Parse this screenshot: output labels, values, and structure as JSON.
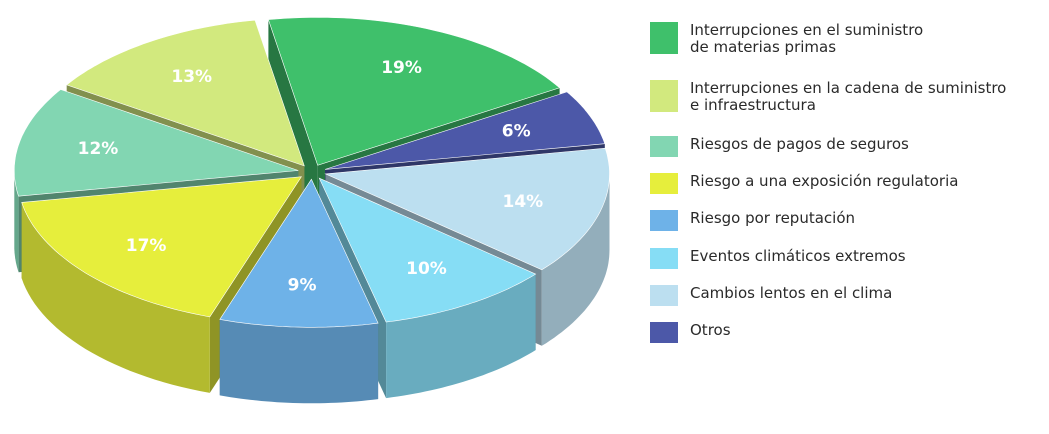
{
  "chart_data": {
    "type": "pie",
    "categories": [
      "Interrupciones en el suministro\nde materias primas",
      "Otros",
      "Cambios lentos en el clima",
      "Eventos climáticos extremos",
      "Riesgo por reputación",
      "Riesgo a una exposición regulatoria",
      "Riesgos de pagos de seguros",
      "Interrupciones en la cadena de suministro\ne infraestructura"
    ],
    "values": [
      19,
      6,
      14,
      10,
      9,
      17,
      12,
      13
    ],
    "value_labels": [
      "19%",
      "6%",
      "14%",
      "10%",
      "9%",
      "17%",
      "12%",
      "13%"
    ],
    "colors": [
      "#3fc06b",
      "#4c58a8",
      "#bcdff0",
      "#86ddf5",
      "#6eb2e8",
      "#e6ee3c",
      "#82d6b2",
      "#d2e97e"
    ]
  }
}
